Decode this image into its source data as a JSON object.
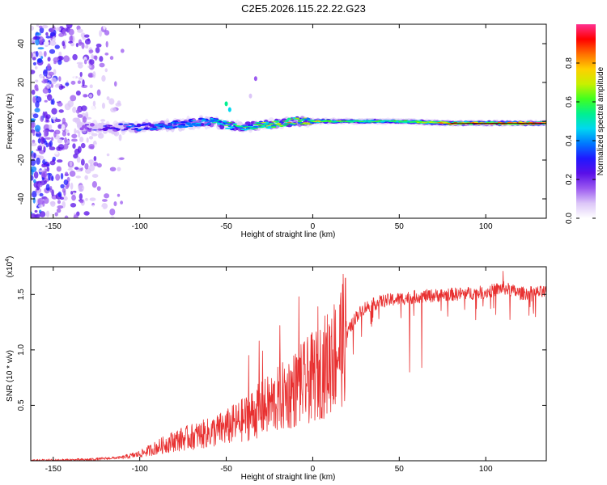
{
  "title": "C2E5.2026.115.22.22.G23",
  "chart_data": [
    {
      "type": "heatmap",
      "name": "spectrogram",
      "xlabel": "Height of straight line (km)",
      "ylabel": "Frequency (Hz)",
      "xlim": [
        -163,
        135
      ],
      "ylim": [
        -50,
        50
      ],
      "xticks": [
        -150,
        -100,
        -50,
        0,
        50,
        100
      ],
      "yticks": [
        -40,
        -20,
        0,
        20,
        40
      ],
      "colorbar": {
        "label": "Normalized spectral amplitude",
        "range": [
          0,
          1
        ],
        "ticks": [
          "0.0",
          "0.2",
          "0.4",
          "0.6",
          "0.8"
        ],
        "colors": [
          "#ffffff",
          "#dcc6f8",
          "#9b59f0",
          "#5a10e8",
          "#2018ff",
          "#0078ff",
          "#00d8f0",
          "#00f090",
          "#40ff20",
          "#c8f000",
          "#ffd000",
          "#ff7000",
          "#ff0000",
          "#ff3090"
        ]
      },
      "ridge": {
        "x": [
          -135,
          -120,
          -100,
          -90,
          -80,
          -70,
          -60,
          -50,
          -40,
          -30,
          -20,
          -10,
          0,
          20,
          50,
          80,
          100,
          135
        ],
        "center_freq": [
          -3,
          -3.5,
          -3,
          -2.5,
          -2,
          -1,
          0,
          -2,
          -3,
          -2,
          -1,
          0,
          0,
          0,
          0,
          -1,
          -1,
          -1
        ],
        "amplitude": [
          0.22,
          0.3,
          0.35,
          0.38,
          0.4,
          0.42,
          0.45,
          0.5,
          0.55,
          0.6,
          0.7,
          0.72,
          0.7,
          0.55,
          0.55,
          0.8,
          0.85,
          0.9
        ]
      },
      "noise_region_x": [
        -163,
        -110
      ]
    },
    {
      "type": "line",
      "name": "snr",
      "xlabel": "Height of straight line (km)",
      "ylabel": "SNR (10 * v/v)",
      "multiplier_label": "(x10",
      "multiplier_exp": "4",
      "xlim": [
        -163,
        135
      ],
      "ylim": [
        0,
        17500
      ],
      "xticks": [
        -150,
        -100,
        -50,
        0,
        50,
        100
      ],
      "ytick_values": [
        5000,
        10000,
        15000
      ],
      "ytick_labels": [
        "0.5",
        "1.0",
        "1.5"
      ],
      "color": "#e83030",
      "trend": {
        "x": [
          -163,
          -130,
          -110,
          -100,
          -90,
          -80,
          -60,
          -50,
          -40,
          -35,
          -30,
          -20,
          -10,
          0,
          10,
          20,
          25,
          30,
          40,
          50,
          60,
          80,
          100,
          110,
          120,
          135
        ],
        "y": [
          0,
          100,
          300,
          600,
          1200,
          1800,
          2500,
          3000,
          3700,
          4200,
          4600,
          5500,
          6500,
          7500,
          9000,
          11500,
          13000,
          13800,
          14400,
          14600,
          14800,
          15000,
          15200,
          15600,
          15100,
          15200
        ]
      },
      "spikes": [
        {
          "x": -37,
          "y": 9500
        },
        {
          "x": -31,
          "y": 10800
        },
        {
          "x": -29,
          "y": 9900
        },
        {
          "x": -19,
          "y": 12200
        },
        {
          "x": -8,
          "y": 14800
        },
        {
          "x": 3,
          "y": 13900
        },
        {
          "x": 11,
          "y": 12800
        },
        {
          "x": 56,
          "y": 8000
        },
        {
          "x": 63,
          "y": 8400
        },
        {
          "x": 110,
          "y": 17100
        }
      ]
    }
  ]
}
